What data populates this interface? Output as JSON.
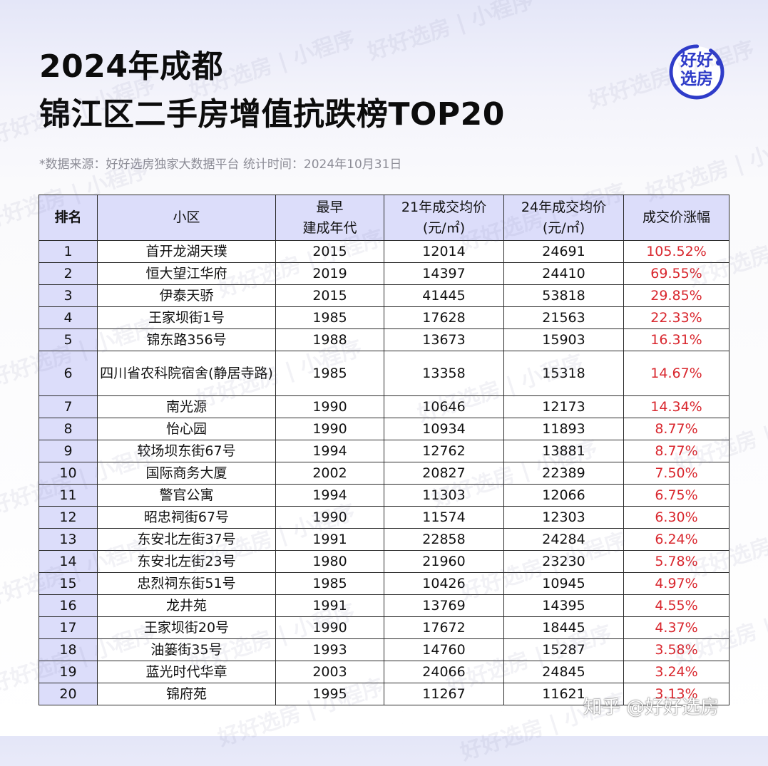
{
  "title_line1": "2024年成都",
  "title_line2": "锦江区二手房增值抗跌榜TOP20",
  "source_note": "*数据来源：好好选房独家大数据平台 统计时间：2024年10月31日",
  "logo_text": "好好\n选房",
  "watermark_text": "好好选房 | 小程序",
  "zhihu_credit": "知乎 @好好选房",
  "table": {
    "headers": {
      "rank": "排名",
      "community": "小区",
      "built_line1": "最早",
      "built_line2": "建成年代",
      "price21_line1": "21年成交均价",
      "price21_line2": "(元/㎡)",
      "price24_line1": "24年成交均价",
      "price24_line2": "(元/㎡)",
      "gain": "成交价涨幅"
    },
    "rows": [
      {
        "rank": "1",
        "name": "首开龙湖天璞",
        "built": "2015",
        "p21": "12014",
        "p24": "24691",
        "gain": "105.52%"
      },
      {
        "rank": "2",
        "name": "恒大望江华府",
        "built": "2019",
        "p21": "14397",
        "p24": "24410",
        "gain": "69.55%"
      },
      {
        "rank": "3",
        "name": "伊泰天骄",
        "built": "2015",
        "p21": "41445",
        "p24": "53818",
        "gain": "29.85%"
      },
      {
        "rank": "4",
        "name": "王家坝街1号",
        "built": "1985",
        "p21": "17628",
        "p24": "21563",
        "gain": "22.33%"
      },
      {
        "rank": "5",
        "name": "锦东路356号",
        "built": "1988",
        "p21": "13673",
        "p24": "15903",
        "gain": "16.31%"
      },
      {
        "rank": "6",
        "name": "四川省农科院宿舍(静居寺路)",
        "built": "1985",
        "p21": "13358",
        "p24": "15318",
        "gain": "14.67%"
      },
      {
        "rank": "7",
        "name": "南光源",
        "built": "1990",
        "p21": "10646",
        "p24": "12173",
        "gain": "14.34%"
      },
      {
        "rank": "8",
        "name": "怡心园",
        "built": "1990",
        "p21": "10934",
        "p24": "11893",
        "gain": "8.77%"
      },
      {
        "rank": "9",
        "name": "较场坝东街67号",
        "built": "1994",
        "p21": "12762",
        "p24": "13881",
        "gain": "8.77%"
      },
      {
        "rank": "10",
        "name": "国际商务大厦",
        "built": "2002",
        "p21": "20827",
        "p24": "22389",
        "gain": "7.50%"
      },
      {
        "rank": "11",
        "name": "警官公寓",
        "built": "1994",
        "p21": "11303",
        "p24": "12066",
        "gain": "6.75%"
      },
      {
        "rank": "12",
        "name": "昭忠祠街67号",
        "built": "1990",
        "p21": "11574",
        "p24": "12303",
        "gain": "6.30%"
      },
      {
        "rank": "13",
        "name": "东安北左街37号",
        "built": "1991",
        "p21": "22858",
        "p24": "24284",
        "gain": "6.24%"
      },
      {
        "rank": "14",
        "name": "东安北左街23号",
        "built": "1980",
        "p21": "21960",
        "p24": "23230",
        "gain": "5.78%"
      },
      {
        "rank": "15",
        "name": "忠烈祠东街51号",
        "built": "1985",
        "p21": "10426",
        "p24": "10945",
        "gain": "4.97%"
      },
      {
        "rank": "16",
        "name": "龙井苑",
        "built": "1991",
        "p21": "13769",
        "p24": "14395",
        "gain": "4.55%"
      },
      {
        "rank": "17",
        "name": "王家坝街20号",
        "built": "1990",
        "p21": "17672",
        "p24": "18445",
        "gain": "4.37%"
      },
      {
        "rank": "18",
        "name": "油篓街35号",
        "built": "1993",
        "p21": "14760",
        "p24": "15287",
        "gain": "3.58%"
      },
      {
        "rank": "19",
        "name": "蓝光时代华章",
        "built": "2003",
        "p21": "24066",
        "p24": "24845",
        "gain": "3.24%"
      },
      {
        "rank": "20",
        "name": "锦府苑",
        "built": "1995",
        "p21": "11267",
        "p24": "11621",
        "gain": "3.13%"
      }
    ]
  },
  "colors": {
    "header_bg": "#dcddfa",
    "gain_red": "#d9272e",
    "logo_blue": "#2f3cc9",
    "border": "#2b2b2b"
  }
}
